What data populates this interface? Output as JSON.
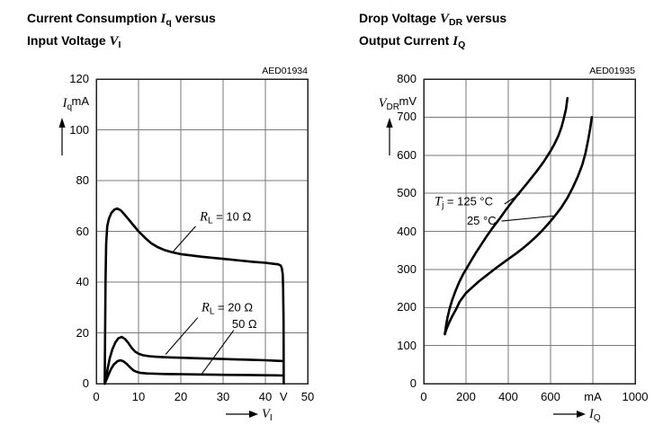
{
  "page": {
    "bg": "#ffffff",
    "ink": "#000000",
    "grid_color": "#7a7a7a",
    "border_color": "#222222"
  },
  "headers": [
    {
      "line1_pre": "Current Consumption ",
      "line1_var": "I",
      "line1_sub": "q",
      "line1_post": " versus",
      "line2_pre": "Input Voltage ",
      "line2_var": "V",
      "line2_sub": "I"
    },
    {
      "line1_pre": "Drop Voltage ",
      "line1_var": "V",
      "line1_sub": "DR",
      "line1_post": " versus",
      "line2_pre": "Output Current ",
      "line2_var": "I",
      "line2_sub": "Q"
    }
  ],
  "chart_data": [
    {
      "type": "line",
      "code": "AED01934",
      "title": "Current Consumption Iq versus Input Voltage VI",
      "xlabel": "VI",
      "ylabel": "Iq",
      "x_name": {
        "var": "V",
        "sub": "I"
      },
      "y_name": {
        "var": "I",
        "sub": "q"
      },
      "x_unit": "V",
      "y_unit": "mA",
      "x_unit_at": 44.3,
      "xlim": [
        0,
        50
      ],
      "ylim": [
        0,
        120
      ],
      "x_ticks": [
        0,
        10,
        20,
        30,
        40,
        50
      ],
      "x_tick_labels": [
        "0",
        "10",
        "20",
        "30",
        "40",
        "50"
      ],
      "y_ticks": [
        0,
        20,
        40,
        60,
        80,
        100,
        120
      ],
      "grid": true,
      "legend": "inline-annotations",
      "series": [
        {
          "name": "RL = 10 Ω",
          "points": [
            [
              2,
              0
            ],
            [
              2.2,
              40
            ],
            [
              2.35,
              55
            ],
            [
              2.6,
              62
            ],
            [
              3,
              65
            ],
            [
              3.6,
              67.3
            ],
            [
              4.3,
              68.6
            ],
            [
              5,
              69
            ],
            [
              5.8,
              68.2
            ],
            [
              6.6,
              66.8
            ],
            [
              7.5,
              65
            ],
            [
              8.5,
              63
            ],
            [
              10,
              60
            ],
            [
              11.5,
              57.5
            ],
            [
              13,
              55.3
            ],
            [
              14.5,
              53.8
            ],
            [
              16,
              52.7
            ],
            [
              18,
              51.7
            ],
            [
              20,
              51
            ],
            [
              22,
              50.6
            ],
            [
              25,
              50
            ],
            [
              28,
              49.5
            ],
            [
              31,
              49
            ],
            [
              34,
              48.5
            ],
            [
              37,
              48
            ],
            [
              40,
              47.6
            ],
            [
              42,
              47.2
            ],
            [
              43,
              47
            ],
            [
              43.6,
              46.6
            ],
            [
              43.9,
              45.5
            ],
            [
              44.1,
              43
            ],
            [
              44.2,
              38
            ],
            [
              44.3,
              25
            ],
            [
              44.35,
              0
            ]
          ]
        },
        {
          "name": "RL = 20 Ω",
          "points": [
            [
              2,
              0
            ],
            [
              2.3,
              2
            ],
            [
              2.7,
              6
            ],
            [
              3.2,
              10
            ],
            [
              3.8,
              13.5
            ],
            [
              4.5,
              16.2
            ],
            [
              5.2,
              17.8
            ],
            [
              6,
              18.4
            ],
            [
              6.8,
              17.6
            ],
            [
              7.6,
              16
            ],
            [
              8.4,
              14
            ],
            [
              9.2,
              12.6
            ],
            [
              10,
              11.8
            ],
            [
              11,
              11.2
            ],
            [
              12.5,
              10.8
            ],
            [
              14,
              10.6
            ],
            [
              16,
              10.4
            ],
            [
              18,
              10.3
            ],
            [
              20,
              10.2
            ],
            [
              24,
              10
            ],
            [
              28,
              9.8
            ],
            [
              32,
              9.6
            ],
            [
              36,
              9.4
            ],
            [
              40,
              9.2
            ],
            [
              42.5,
              9
            ],
            [
              44.3,
              8.9
            ]
          ]
        },
        {
          "name": "RL = 50 Ω",
          "points": [
            [
              2,
              0
            ],
            [
              2.4,
              1.5
            ],
            [
              2.9,
              3.5
            ],
            [
              3.5,
              5.8
            ],
            [
              4.2,
              7.6
            ],
            [
              5,
              8.8
            ],
            [
              5.7,
              9.2
            ],
            [
              6.4,
              8.8
            ],
            [
              7.2,
              7.8
            ],
            [
              8,
              6.4
            ],
            [
              8.8,
              5.2
            ],
            [
              9.6,
              4.6
            ],
            [
              10.5,
              4.2
            ],
            [
              12,
              4
            ],
            [
              14,
              3.9
            ],
            [
              16,
              3.8
            ],
            [
              18,
              3.75
            ],
            [
              20,
              3.7
            ],
            [
              24,
              3.6
            ],
            [
              28,
              3.5
            ],
            [
              32,
              3.45
            ],
            [
              36,
              3.4
            ],
            [
              40,
              3.3
            ],
            [
              42.5,
              3.25
            ],
            [
              44.3,
              3.2
            ]
          ]
        }
      ],
      "annotations": [
        {
          "parts": [
            {
              "v": "R"
            },
            {
              "s": "L"
            },
            {
              "t": " = 10 Ω"
            }
          ],
          "x": 24.5,
          "y": 64.8,
          "leader": [
            [
              23.5,
              62
            ],
            [
              18,
              51.7
            ]
          ]
        },
        {
          "parts": [
            {
              "v": "R"
            },
            {
              "s": "L"
            },
            {
              "t": " = 20 Ω"
            }
          ],
          "x": 24.9,
          "y": 29,
          "leader": [
            [
              24,
              26
            ],
            [
              16.4,
              11.5
            ]
          ]
        },
        {
          "parts": [
            {
              "t": "50 Ω"
            }
          ],
          "x": 32.1,
          "y": 23.4,
          "leader": [
            [
              32.5,
              21
            ],
            [
              25,
              3.9
            ]
          ]
        }
      ]
    },
    {
      "type": "line",
      "code": "AED01935",
      "title": "Drop Voltage VDR versus Output Current IQ",
      "xlabel": "IQ",
      "ylabel": "VDR",
      "x_name": {
        "var": "I",
        "sub": "Q"
      },
      "y_name": {
        "var": "V",
        "sub": "DR"
      },
      "x_unit": "mA",
      "y_unit": "mV",
      "x_unit_at": null,
      "xlim": [
        0,
        1000
      ],
      "ylim": [
        0,
        800
      ],
      "x_ticks": [
        0,
        200,
        400,
        600,
        800,
        1000
      ],
      "x_tick_labels": [
        "0",
        "200",
        "400",
        "600",
        "mA",
        "1000"
      ],
      "y_ticks": [
        0,
        100,
        200,
        300,
        400,
        500,
        600,
        700,
        800
      ],
      "grid": true,
      "legend": "inline-annotations",
      "series": [
        {
          "name": "Tj = 125 °C",
          "points": [
            [
              100,
              130
            ],
            [
              105,
              150
            ],
            [
              112,
              172
            ],
            [
              122,
              196
            ],
            [
              135,
              220
            ],
            [
              150,
              243
            ],
            [
              168,
              267
            ],
            [
              188,
              289
            ],
            [
              200,
              300
            ],
            [
              222,
              321
            ],
            [
              246,
              343
            ],
            [
              272,
              365
            ],
            [
              300,
              389
            ],
            [
              330,
              412
            ],
            [
              360,
              434
            ],
            [
              390,
              457
            ],
            [
              420,
              479
            ],
            [
              450,
              500
            ],
            [
              480,
              520
            ],
            [
              510,
              541
            ],
            [
              540,
              562
            ],
            [
              570,
              585
            ],
            [
              600,
              611
            ],
            [
              620,
              631
            ],
            [
              638,
              652
            ],
            [
              652,
              674
            ],
            [
              663,
              697
            ],
            [
              673,
              722
            ],
            [
              680,
              750
            ]
          ]
        },
        {
          "name": "Tj = 25 °C",
          "points": [
            [
              100,
              130
            ],
            [
              108,
              144
            ],
            [
              120,
              160
            ],
            [
              135,
              177
            ],
            [
              152,
              194
            ],
            [
              170,
              215
            ],
            [
              200,
              238
            ],
            [
              230,
              253
            ],
            [
              260,
              268
            ],
            [
              290,
              281
            ],
            [
              320,
              294
            ],
            [
              350,
              307
            ],
            [
              380,
              319
            ],
            [
              410,
              331
            ],
            [
              440,
              343
            ],
            [
              470,
              356
            ],
            [
              500,
              370
            ],
            [
              530,
              385
            ],
            [
              560,
              402
            ],
            [
              590,
              420
            ],
            [
              620,
              440
            ],
            [
              650,
              462
            ],
            [
              680,
              488
            ],
            [
              705,
              515
            ],
            [
              730,
              545
            ],
            [
              750,
              575
            ],
            [
              765,
              605
            ],
            [
              778,
              640
            ],
            [
              788,
              672
            ],
            [
              795,
              700
            ]
          ]
        }
      ],
      "annotations": [
        {
          "parts": [
            {
              "v": "T"
            },
            {
              "s": "j"
            },
            {
              "t": " = 125 °C"
            }
          ],
          "x": 51,
          "y": 472,
          "leader": [
            [
              382,
              472
            ],
            [
              455,
              498
            ]
          ]
        },
        {
          "parts": [
            {
              "t": "25 °C"
            }
          ],
          "x": 204,
          "y": 427,
          "leader": [
            [
              368,
              427
            ],
            [
              625,
              441
            ]
          ]
        }
      ]
    }
  ]
}
